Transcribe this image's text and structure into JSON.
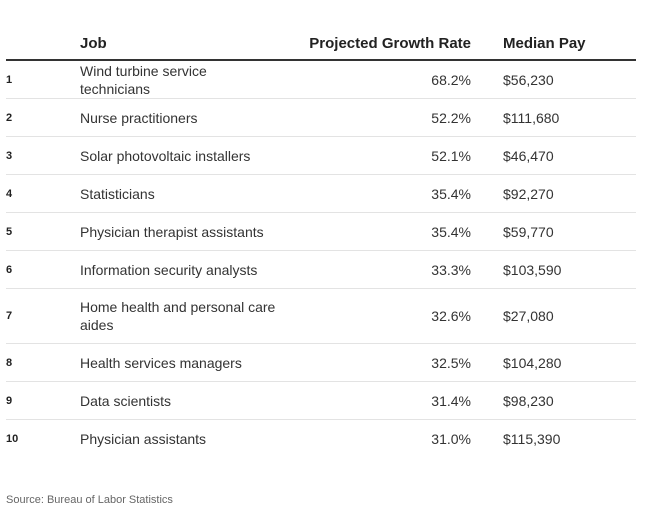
{
  "table": {
    "headers": {
      "rank": "",
      "job": "Job",
      "growth": "Projected Growth Rate",
      "pay": "Median Pay"
    },
    "rows": [
      {
        "rank": "1",
        "job": "Wind turbine service technicians",
        "growth": "68.2%",
        "pay": "$56,230"
      },
      {
        "rank": "2",
        "job": "Nurse practitioners",
        "growth": "52.2%",
        "pay": "$111,680"
      },
      {
        "rank": "3",
        "job": "Solar photovoltaic installers",
        "growth": "52.1%",
        "pay": "$46,470"
      },
      {
        "rank": "4",
        "job": "Statisticians",
        "growth": "35.4%",
        "pay": "$92,270"
      },
      {
        "rank": "5",
        "job": "Physician therapist assistants",
        "growth": "35.4%",
        "pay": "$59,770"
      },
      {
        "rank": "6",
        "job": "Information security analysts",
        "growth": "33.3%",
        "pay": "$103,590"
      },
      {
        "rank": "7",
        "job": "Home health and personal care aides",
        "growth": "32.6%",
        "pay": "$27,080"
      },
      {
        "rank": "8",
        "job": "Health services managers",
        "growth": "32.5%",
        "pay": "$104,280"
      },
      {
        "rank": "9",
        "job": "Data scientists",
        "growth": "31.4%",
        "pay": "$98,230"
      },
      {
        "rank": "10",
        "job": "Physician assistants",
        "growth": "31.0%",
        "pay": "$115,390"
      }
    ]
  },
  "source": "Source: Bureau of Labor Statistics"
}
